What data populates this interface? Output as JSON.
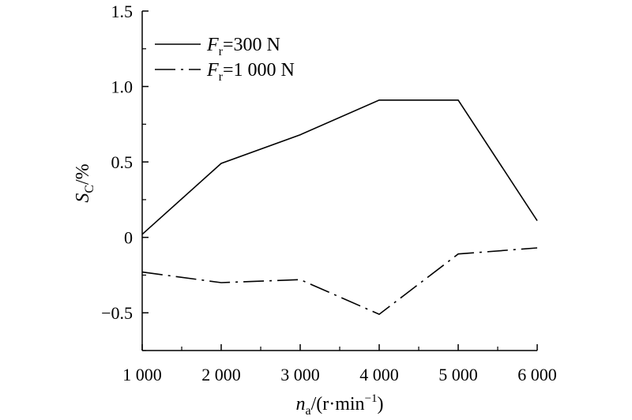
{
  "chart_data": {
    "type": "line",
    "x": [
      1000,
      2000,
      3000,
      4000,
      5000,
      6000
    ],
    "x_tick_labels": [
      "1 000",
      "2 000",
      "3 000",
      "4 000",
      "5 000",
      "6 000"
    ],
    "y_tick_values": [
      -0.5,
      0,
      0.5,
      1.0,
      1.5
    ],
    "y_tick_labels": [
      "−0.5",
      "0",
      "0.5",
      "1.0",
      "1.5"
    ],
    "xlim": [
      1000,
      6000
    ],
    "ylim": [
      -0.75,
      1.5
    ],
    "xlabel": {
      "sym": "n",
      "sub": "a",
      "rest": "/(r·min",
      "sup": "−1",
      "end": ")"
    },
    "ylabel": {
      "sym": "S",
      "sub": "C",
      "rest": "/%"
    },
    "legend_position": "top-left",
    "series": [
      {
        "legend": {
          "sym": "F",
          "sub": "r",
          "rest": "=300 N"
        },
        "style": "solid",
        "color": "#000000",
        "y": [
          0.02,
          0.49,
          0.68,
          0.91,
          0.91,
          0.11
        ]
      },
      {
        "legend": {
          "sym": "F",
          "sub": "r",
          "rest": "=1 000 N"
        },
        "style": "dash-dot",
        "color": "#000000",
        "y": [
          -0.23,
          -0.3,
          -0.28,
          -0.51,
          -0.11,
          -0.07
        ]
      }
    ]
  }
}
